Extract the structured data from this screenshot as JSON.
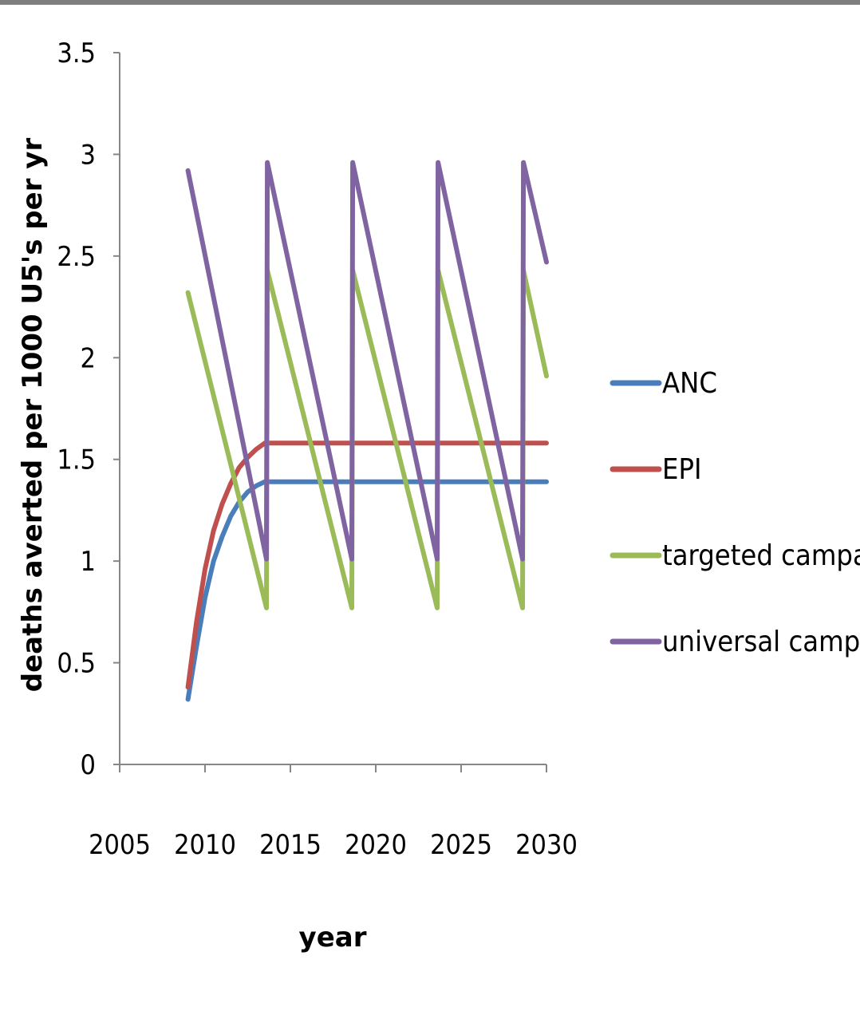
{
  "chart_data": {
    "type": "line",
    "title": "",
    "xlabel": "year",
    "ylabel": "deaths averted per 1000 U5's per yr",
    "xlim": [
      2005,
      2030
    ],
    "ylim": [
      0,
      3.5
    ],
    "xticks": [
      "2005",
      "2010",
      "2015",
      "2020",
      "2025",
      "2030"
    ],
    "yticks": [
      "0",
      "0.5",
      "1",
      "1.5",
      "2",
      "2.5",
      "3",
      "3.5"
    ],
    "grid": false,
    "legend_position": "right",
    "series": [
      {
        "name": "ANC",
        "color": "#4a7ebb",
        "x": [
          2009,
          2009.5,
          2010,
          2010.5,
          2011,
          2011.5,
          2012,
          2012.5,
          2013,
          2013.5,
          2014,
          2020,
          2025,
          2030
        ],
        "y": [
          0.32,
          0.58,
          0.82,
          1.0,
          1.12,
          1.22,
          1.29,
          1.34,
          1.37,
          1.39,
          1.39,
          1.39,
          1.39,
          1.39
        ]
      },
      {
        "name": "EPI",
        "color": "#c0504d",
        "x": [
          2009,
          2009.5,
          2010,
          2010.5,
          2011,
          2011.5,
          2012,
          2012.5,
          2013,
          2013.5,
          2014,
          2020,
          2025,
          2030
        ],
        "y": [
          0.38,
          0.7,
          0.96,
          1.15,
          1.28,
          1.38,
          1.46,
          1.51,
          1.55,
          1.58,
          1.58,
          1.58,
          1.58,
          1.58
        ]
      },
      {
        "name": "targeted campaign",
        "color": "#9bbb59",
        "x": [
          2009,
          2013.6,
          2013.65,
          2018.6,
          2018.65,
          2023.6,
          2023.65,
          2028.6,
          2028.65,
          2030
        ],
        "y": [
          2.32,
          0.77,
          2.43,
          0.77,
          2.43,
          0.77,
          2.43,
          0.77,
          2.43,
          1.91
        ]
      },
      {
        "name": "universal campaign",
        "color": "#8064a2",
        "x": [
          2009,
          2013.6,
          2013.65,
          2018.6,
          2018.65,
          2023.6,
          2023.65,
          2028.6,
          2028.65,
          2030
        ],
        "y": [
          2.92,
          1.01,
          2.96,
          1.01,
          2.96,
          1.01,
          2.96,
          1.01,
          2.96,
          2.47
        ]
      }
    ]
  }
}
